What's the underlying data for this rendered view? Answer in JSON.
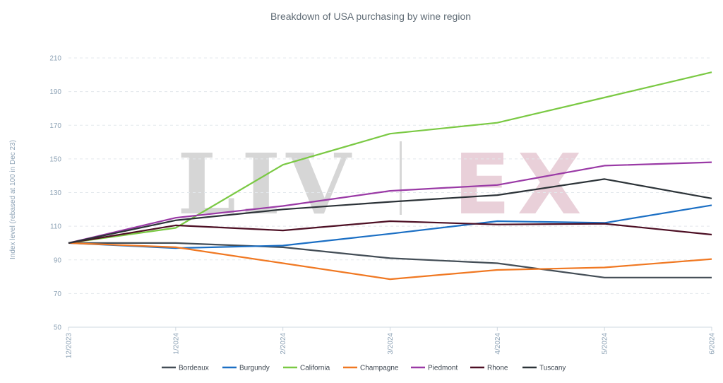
{
  "chart_data": {
    "type": "line",
    "title": "Breakdown of USA purchasing by wine region",
    "ylabel": "Index level (rebased at 100 in Dec 23)",
    "xlabel": "",
    "categories": [
      "12/2023",
      "1/2024",
      "2/2024",
      "3/2024",
      "4/2024",
      "5/2024",
      "6/2024"
    ],
    "ylim": [
      50,
      210
    ],
    "yticks": [
      50,
      70,
      90,
      110,
      130,
      150,
      170,
      190,
      210
    ],
    "grid": true,
    "legend": "bottom",
    "series": [
      {
        "name": "Bordeaux",
        "color": "#434d56",
        "values": [
          100,
          100,
          97.5,
          91,
          88,
          79.5,
          79.5
        ]
      },
      {
        "name": "Burgundy",
        "color": "#1b6fc4",
        "values": [
          100,
          97,
          98.5,
          105.5,
          113,
          112,
          122.5
        ]
      },
      {
        "name": "California",
        "color": "#7ac943",
        "values": [
          100,
          109,
          146.5,
          165,
          171.5,
          186.5,
          201.5
        ]
      },
      {
        "name": "Champagne",
        "color": "#f07822",
        "values": [
          100,
          97.5,
          88,
          78.5,
          84,
          85.5,
          90.5
        ]
      },
      {
        "name": "Piedmont",
        "color": "#9a3aa6",
        "values": [
          100,
          115,
          122,
          131,
          134.5,
          146,
          148
        ]
      },
      {
        "name": "Rhone",
        "color": "#4d0f24",
        "values": [
          100,
          110.5,
          107.5,
          113,
          111,
          111.5,
          105
        ]
      },
      {
        "name": "Tuscany",
        "color": "#2c3338",
        "values": [
          100,
          113.5,
          120,
          124.5,
          128.5,
          138,
          126.5
        ]
      }
    ]
  },
  "watermark": {
    "left": "LIV",
    "right": "EX"
  }
}
